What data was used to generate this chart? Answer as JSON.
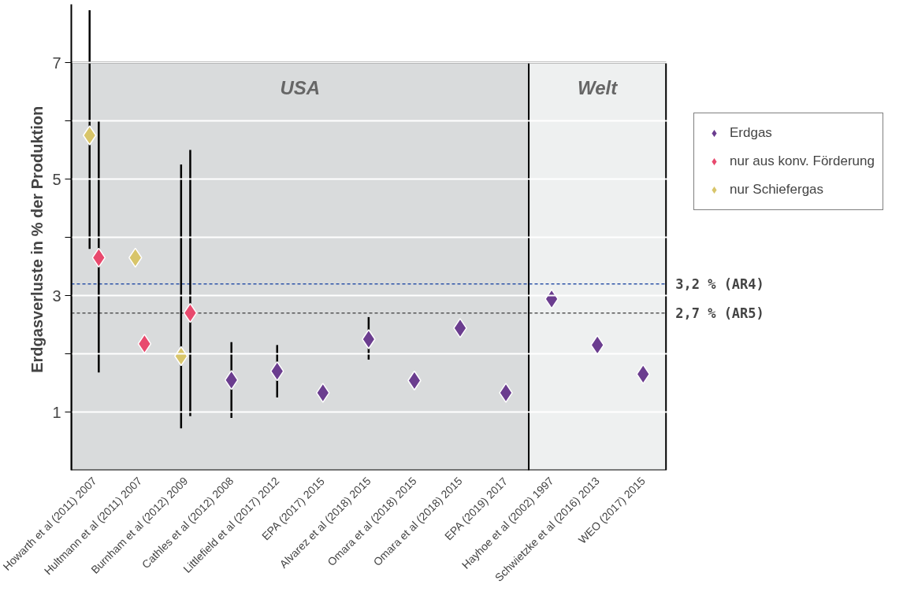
{
  "chart_data": {
    "type": "scatter",
    "ylabel": "Erdgasverluste in  % der Produktion",
    "categories": [
      "Howarth et al (2011) 2007",
      "Hultmann et al (2011) 2007",
      "Burnham et al (2012) 2009",
      "Cathles et al (2012) 2008",
      "Littlefield et al (2017) 2012",
      "EPA (2017) 2015",
      "Alvarez et al (2018) 2015",
      "Omara et al (2018) 2015",
      "Omara et al (2018) 2015",
      "EPA (2019) 2017",
      "Hayhoe et al (2002) 1997",
      "Schwietzke et al (2016) 2013",
      "WEO (2017) 2015"
    ],
    "series": [
      {
        "name": "Erdgas",
        "color": "#6b3d8f",
        "values": [
          null,
          null,
          null,
          1.55,
          1.7,
          1.33,
          2.25,
          1.54,
          2.44,
          1.33,
          2.94,
          2.15,
          1.65
        ],
        "errors": [
          null,
          null,
          null,
          [
            0.9,
            2.2
          ],
          [
            1.25,
            2.15
          ],
          null,
          [
            1.9,
            2.63
          ],
          null,
          null,
          null,
          null,
          null,
          null
        ]
      },
      {
        "name": "nur aus konv. Förderung",
        "color": "#e84a6e",
        "values": [
          3.65,
          2.17,
          2.7,
          null,
          null,
          null,
          null,
          null,
          null,
          null,
          null,
          null,
          null
        ],
        "errors": [
          [
            1.68,
            6.0
          ],
          null,
          [
            0.93,
            5.5
          ],
          null,
          null,
          null,
          null,
          null,
          null,
          null,
          null,
          null,
          null
        ]
      },
      {
        "name": "nur Schiefergas",
        "color": "#d8c56a",
        "values": [
          5.75,
          3.65,
          1.96,
          null,
          null,
          null,
          null,
          null,
          null,
          null,
          null,
          null,
          null
        ],
        "errors": [
          [
            3.8,
            7.9
          ],
          null,
          [
            0.72,
            5.25
          ],
          null,
          null,
          null,
          null,
          null,
          null,
          null,
          null,
          null,
          null
        ]
      }
    ],
    "ylim": [
      0,
      8
    ],
    "yticks": [
      1,
      {
        "value": 2,
        "label": null
      },
      3,
      {
        "value": 4,
        "label": null
      },
      5,
      {
        "value": 6,
        "label": null
      },
      7
    ],
    "bands": [
      {
        "axis": "x",
        "from": "Howarth et al (2011) 2007",
        "to": "EPA (2019) 2017",
        "label": "USA",
        "color": "#d9dbdc"
      },
      {
        "axis": "x",
        "from": "Hayhoe et al (2002) 1997",
        "to": "WEO (2017) 2015",
        "label": "Welt",
        "color": "#eef0f0"
      }
    ],
    "ref_lines": [
      {
        "axis": "y",
        "value": 3.2,
        "label": "3,2 % (AR4)",
        "color": "#2f55a8",
        "line_style": "dashed"
      },
      {
        "axis": "y",
        "value": 2.7,
        "label": "2,7 % (AR5)",
        "color": "#555555",
        "line_style": "dashed"
      }
    ],
    "grid": "y",
    "legend": "top right",
    "marker": "diamond"
  }
}
